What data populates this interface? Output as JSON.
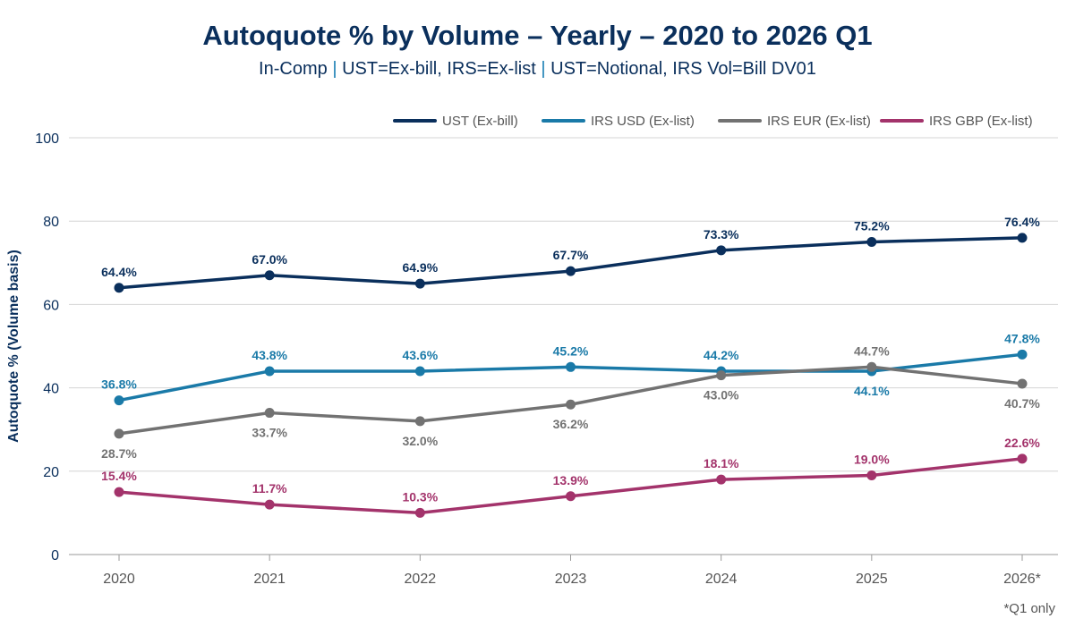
{
  "chart_data": {
    "type": "line",
    "title": "Autoquote % by Volume – Yearly – 2020 to 2026 Q1",
    "subtitle_parts": [
      "In-Comp",
      "UST=Ex-bill, IRS=Ex-list",
      "UST=Notional, IRS Vol=Bill DV01"
    ],
    "subtitle_separator": "|",
    "xlabel": "",
    "ylabel": "Autoquote % (Volume basis)",
    "ylim": [
      0,
      100
    ],
    "yticks": [
      0,
      20,
      40,
      60,
      80,
      100
    ],
    "x": [
      "2020",
      "2021",
      "2022",
      "2023",
      "2024",
      "2025",
      "2026*"
    ],
    "grid": true,
    "legend_position": "top-right",
    "series": [
      {
        "name": "UST (Ex-bill)",
        "color": "#0a2f5c",
        "values": [
          64,
          67,
          65,
          68,
          73,
          75,
          76
        ],
        "labels": [
          "64.4%",
          "67.0%",
          "64.9%",
          "67.7%",
          "73.3%",
          "75.2%",
          "76.4%"
        ],
        "label_side": [
          "above",
          "above",
          "above",
          "above",
          "above",
          "above",
          "above"
        ]
      },
      {
        "name": "IRS USD (Ex-list)",
        "color": "#1a7aa8",
        "values": [
          37,
          44,
          44,
          45,
          44,
          44,
          48
        ],
        "labels": [
          "36.8%",
          "43.8%",
          "43.6%",
          "45.2%",
          "44.2%",
          "44.1%",
          "47.8%"
        ],
        "label_side": [
          "above",
          "above",
          "above",
          "above",
          "above",
          "below",
          "above"
        ]
      },
      {
        "name": "IRS EUR (Ex-list)",
        "color": "#727272",
        "values": [
          29,
          34,
          32,
          36,
          43,
          45,
          41
        ],
        "labels": [
          "28.7%",
          "33.7%",
          "32.0%",
          "36.2%",
          "43.0%",
          "44.7%",
          "40.7%"
        ],
        "label_side": [
          "below",
          "below",
          "below",
          "below",
          "below",
          "above",
          "below"
        ]
      },
      {
        "name": "IRS GBP (Ex-list)",
        "color": "#a3336b",
        "values": [
          15,
          12,
          10,
          14,
          18,
          19,
          23
        ],
        "labels": [
          "15.4%",
          "11.7%",
          "10.3%",
          "13.9%",
          "18.1%",
          "19.0%",
          "22.6%"
        ],
        "label_side": [
          "above",
          "above",
          "above",
          "above",
          "above",
          "above",
          "above"
        ]
      }
    ],
    "footnote": "*Q1 only"
  }
}
